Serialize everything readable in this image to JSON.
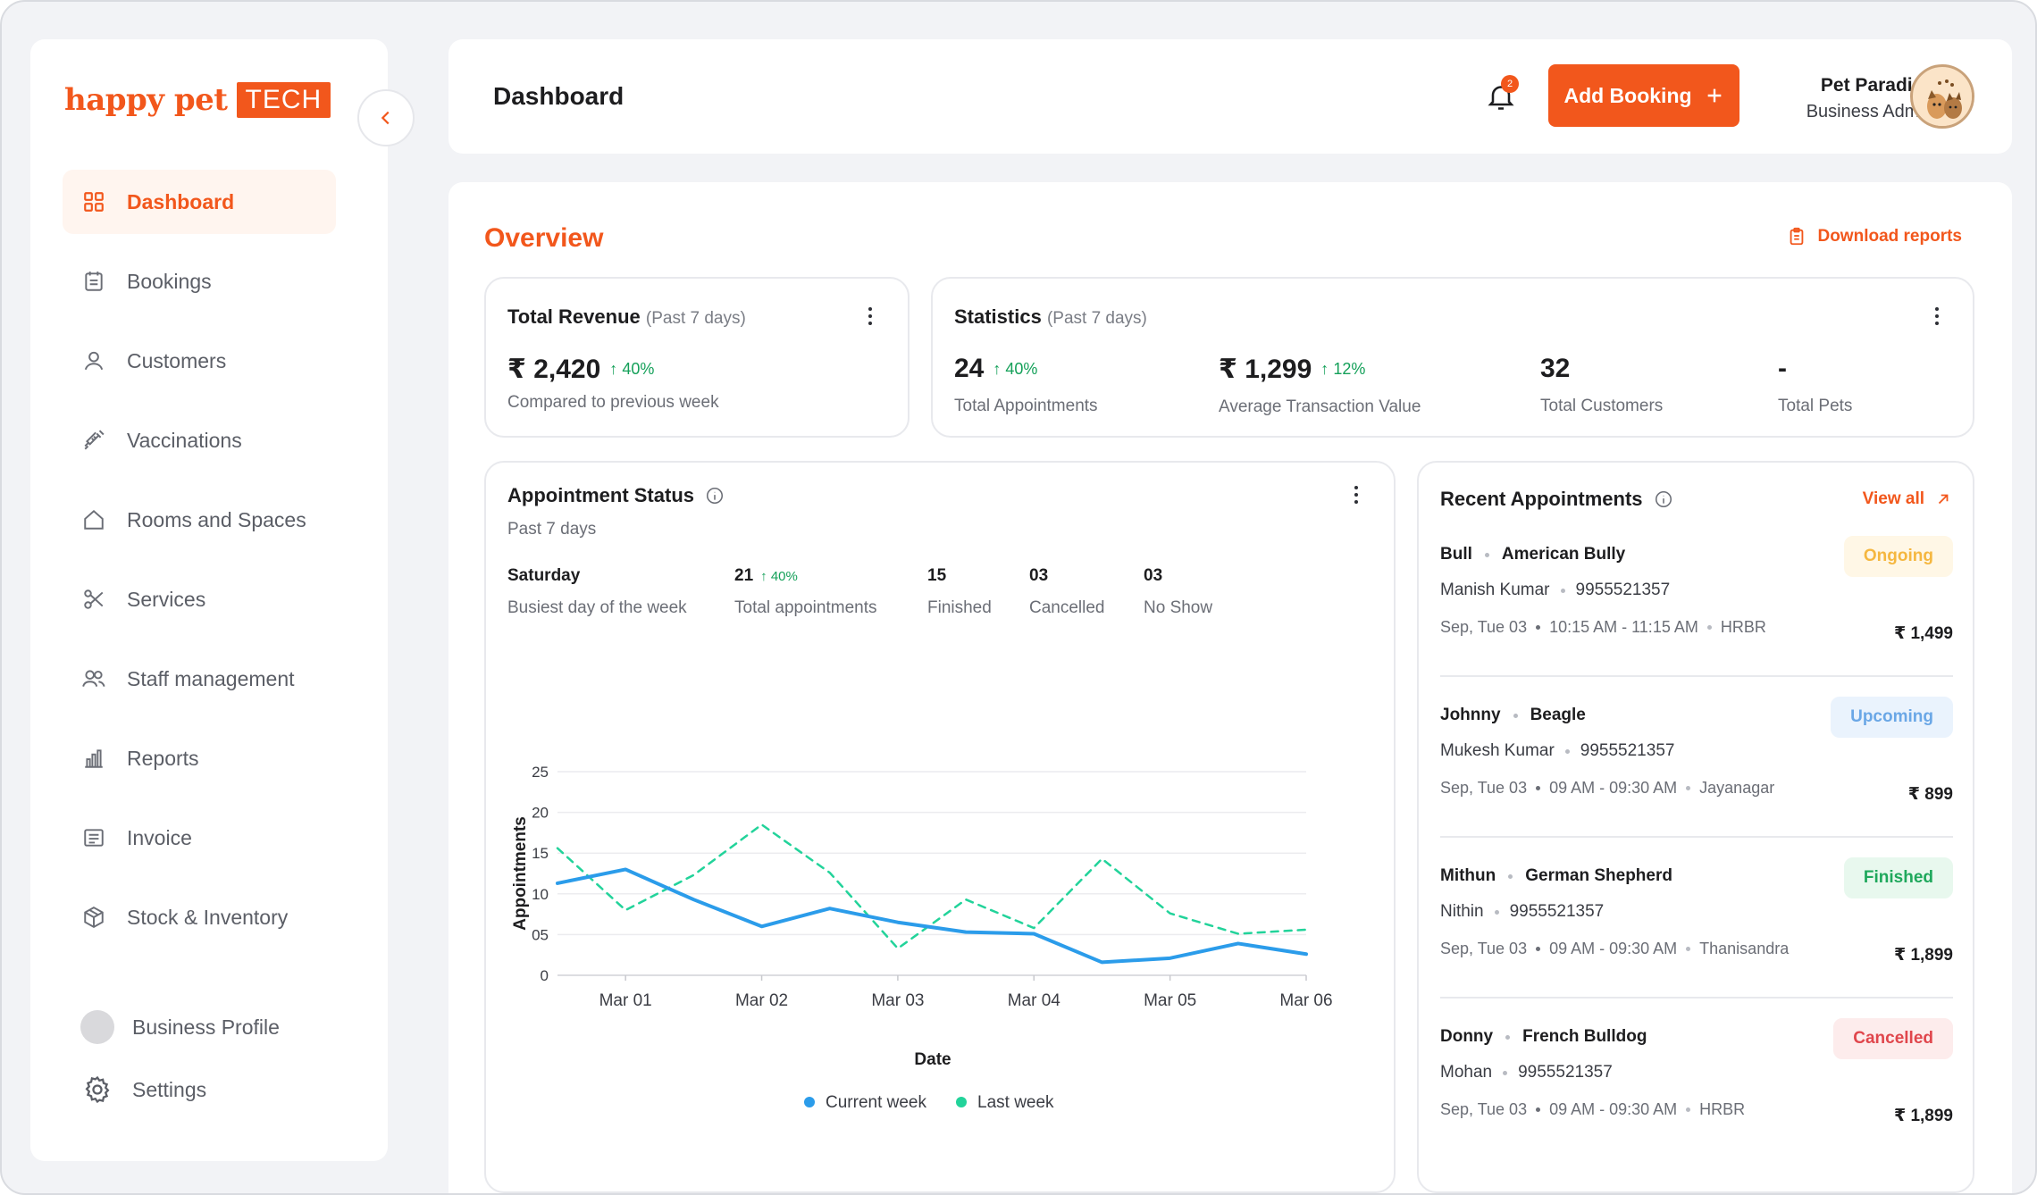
{
  "brand": {
    "name": "happy pet",
    "badge": "TECH"
  },
  "sidebar": {
    "items": [
      {
        "label": "Dashboard",
        "icon": "grid-icon",
        "active": true
      },
      {
        "label": "Bookings",
        "icon": "calendar-icon"
      },
      {
        "label": "Customers",
        "icon": "user-icon"
      },
      {
        "label": "Vaccinations",
        "icon": "syringe-icon"
      },
      {
        "label": "Rooms and Spaces",
        "icon": "home-icon"
      },
      {
        "label": "Services",
        "icon": "scissors-icon"
      },
      {
        "label": "Staff management",
        "icon": "users-icon"
      },
      {
        "label": "Reports",
        "icon": "bar-chart-icon"
      },
      {
        "label": "Invoice",
        "icon": "invoice-icon"
      },
      {
        "label": "Stock & Inventory",
        "icon": "box-icon"
      }
    ],
    "bottom": [
      {
        "label": "Business Profile",
        "icon": "avatar"
      },
      {
        "label": "Settings",
        "icon": "gear-icon"
      }
    ]
  },
  "header": {
    "title": "Dashboard",
    "notification_count": "2",
    "add_booking": "Add Booking",
    "user_name": "Pet Paradise",
    "user_role": "Business Admin"
  },
  "overview": {
    "title": "Overview",
    "download": "Download reports"
  },
  "revenue": {
    "title": "Total Revenue",
    "period": "(Past 7 days)",
    "value": "₹ 2,420",
    "trend": "40%",
    "caption": "Compared to previous week"
  },
  "statistics": {
    "title": "Statistics",
    "period": "(Past 7 days)",
    "items": [
      {
        "value": "24",
        "trend": "40%",
        "label": "Total Appointments"
      },
      {
        "value": "₹ 1,299",
        "trend": "12%",
        "label": "Average Transaction Value"
      },
      {
        "value": "32",
        "trend": "",
        "label": "Total Customers"
      },
      {
        "value": "-",
        "trend": "",
        "label": "Total Pets"
      }
    ]
  },
  "appointment_status": {
    "title": "Appointment Status",
    "subtitle": "Past 7 days",
    "stats": [
      {
        "value": "Saturday",
        "trend": "",
        "label": "Busiest day of the week"
      },
      {
        "value": "21",
        "trend": "40%",
        "label": "Total appointments"
      },
      {
        "value": "15",
        "trend": "",
        "label": "Finished"
      },
      {
        "value": "03",
        "trend": "",
        "label": "Cancelled"
      },
      {
        "value": "03",
        "trend": "",
        "label": "No Show"
      }
    ]
  },
  "chart_data": {
    "type": "line",
    "xlabel": "Date",
    "ylabel": "Appointments",
    "x_ticks": [
      "Mar 01",
      "Mar 02",
      "Mar 03",
      "Mar 04",
      "Mar 05",
      "Mar 06"
    ],
    "y_ticks": [
      "0",
      "05",
      "10",
      "15",
      "20",
      "25"
    ],
    "ylim": [
      0,
      25
    ],
    "xlim": [
      0.5,
      6
    ],
    "grid": true,
    "legend_position": "bottom-center",
    "series": [
      {
        "name": "Current week",
        "color": "#2b9cea",
        "style": "solid",
        "x": [
          0.5,
          1.0,
          1.5,
          2.0,
          2.5,
          3.0,
          3.5,
          4.0,
          4.5,
          5.0,
          5.5,
          6.0
        ],
        "y": [
          11.3,
          13.0,
          9.3,
          6.0,
          8.2,
          6.5,
          5.3,
          5.1,
          1.6,
          2.1,
          3.9,
          2.6
        ]
      },
      {
        "name": "Last week",
        "color": "#22d39a",
        "style": "dashed",
        "x": [
          0.5,
          1.0,
          1.5,
          2.0,
          2.5,
          3.0,
          3.5,
          4.0,
          4.5,
          5.0,
          5.5,
          6.0
        ],
        "y": [
          15.6,
          8.0,
          12.3,
          18.5,
          12.6,
          3.3,
          9.3,
          5.8,
          14.3,
          7.6,
          5.1,
          5.6
        ]
      }
    ]
  },
  "recent": {
    "title": "Recent Appointments",
    "view_all": "View all",
    "items": [
      {
        "pet": "Bull",
        "breed": "American Bully",
        "owner": "Manish Kumar",
        "phone": "9955521357",
        "date": "Sep, Tue 03",
        "time": "10:15 AM - 11:15 AM",
        "location": "HRBR",
        "price": "₹ 1,499",
        "status": "Ongoing",
        "status_color": "#f5b740",
        "status_bg": "#fff7e6"
      },
      {
        "pet": "Johnny",
        "breed": "Beagle",
        "owner": "Mukesh Kumar",
        "phone": "9955521357",
        "date": "Sep, Tue 03",
        "time": "09 AM - 09:30 AM",
        "location": "Jayanagar",
        "price": "₹ 899",
        "status": "Upcoming",
        "status_color": "#6aa7e6",
        "status_bg": "#eaf3fd"
      },
      {
        "pet": "Mithun",
        "breed": "German Shepherd",
        "owner": "Nithin",
        "phone": "9955521357",
        "date": "Sep, Tue 03",
        "time": "09 AM - 09:30 AM",
        "location": "Thanisandra",
        "price": "₹ 1,899",
        "status": "Finished",
        "status_color": "#1fa85c",
        "status_bg": "#e8f8ee"
      },
      {
        "pet": "Donny",
        "breed": "French Bulldog",
        "owner": "Mohan",
        "phone": "9955521357",
        "date": "Sep, Tue 03",
        "time": "09 AM - 09:30 AM",
        "location": "HRBR",
        "price": "₹ 1,899",
        "status": "Cancelled",
        "status_color": "#e0464c",
        "status_bg": "#fdecec"
      }
    ]
  }
}
